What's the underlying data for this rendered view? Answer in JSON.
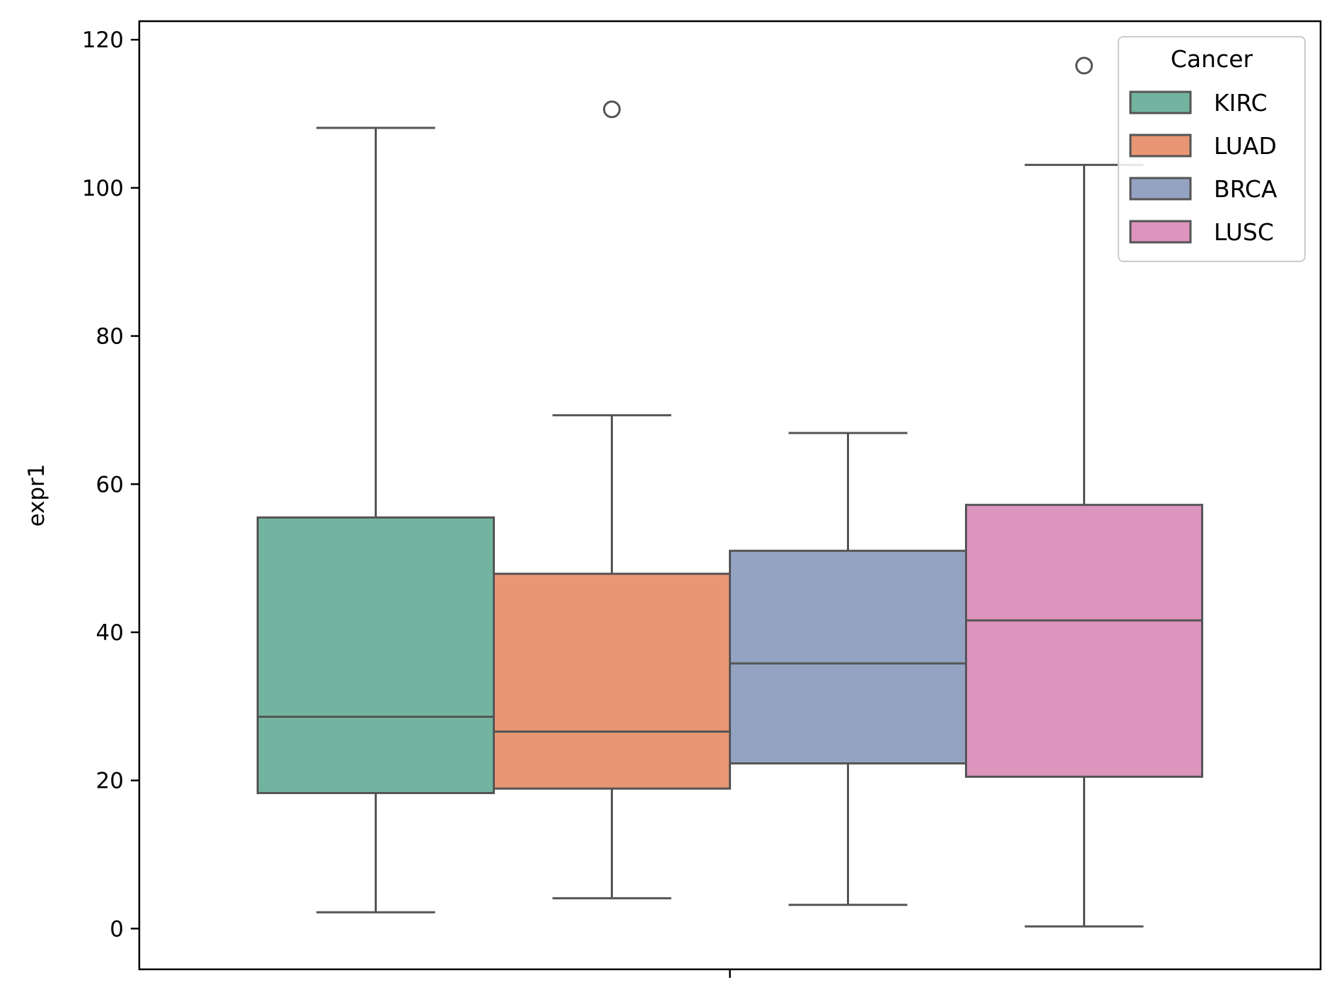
{
  "chart_data": {
    "type": "box",
    "title": "",
    "xlabel": "",
    "ylabel": "expr1",
    "ylim": [
      -5.5,
      122.5
    ],
    "yticks": [
      0,
      20,
      40,
      60,
      80,
      100,
      120
    ],
    "grid": false,
    "legend": {
      "title": "Cancer",
      "position": "top-right"
    },
    "series": [
      {
        "name": "KIRC",
        "color": "#73b4a0",
        "whisker_low": 2.2,
        "q1": 18.3,
        "median": 28.6,
        "q3": 55.5,
        "whisker_high": 108.1,
        "outliers": []
      },
      {
        "name": "LUAD",
        "color": "#e89674",
        "whisker_low": 4.1,
        "q1": 18.9,
        "median": 26.6,
        "q3": 47.9,
        "whisker_high": 69.3,
        "outliers": [
          110.6
        ]
      },
      {
        "name": "BRCA",
        "color": "#95a3c3",
        "whisker_low": 3.2,
        "q1": 22.3,
        "median": 35.8,
        "q3": 51.0,
        "whisker_high": 66.9,
        "outliers": []
      },
      {
        "name": "LUSC",
        "color": "#dd94bd",
        "whisker_low": 0.3,
        "q1": 20.5,
        "median": 41.6,
        "q3": 57.2,
        "whisker_high": 103.1,
        "outliers": [
          116.5
        ]
      }
    ]
  }
}
